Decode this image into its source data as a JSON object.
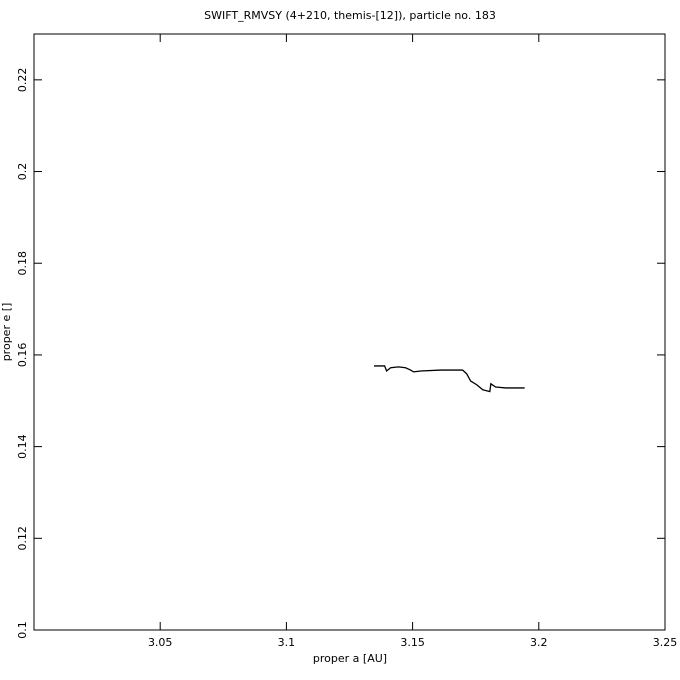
{
  "chart_data": {
    "type": "line",
    "title": "SWIFT_RMVSY (4+210, themis-[12]), particle no. 183",
    "x_label": "proper a [AU]",
    "y_label": "proper e []",
    "xlim": [
      3.0,
      3.25
    ],
    "ylim": [
      0.1,
      0.23
    ],
    "xticks": [
      3.05,
      3.1,
      3.15,
      3.2,
      3.25
    ],
    "yticks": [
      0.1,
      0.12,
      0.14,
      0.16,
      0.18,
      0.2,
      0.22
    ],
    "color": "#000000",
    "x": [
      3.1347,
      3.1389,
      3.1397,
      3.1413,
      3.1444,
      3.1472,
      3.1492,
      3.1504,
      3.1532,
      3.1611,
      3.1698,
      3.1714,
      3.173,
      3.1754,
      3.1778,
      3.1806,
      3.181,
      3.1829,
      3.1869,
      3.1944
    ],
    "values": [
      0.1576,
      0.1576,
      0.1565,
      0.1572,
      0.1574,
      0.1572,
      0.1567,
      0.1563,
      0.1565,
      0.1567,
      0.1567,
      0.1559,
      0.1543,
      0.1535,
      0.1524,
      0.152,
      0.1537,
      0.153,
      0.1528,
      0.1528
    ]
  }
}
